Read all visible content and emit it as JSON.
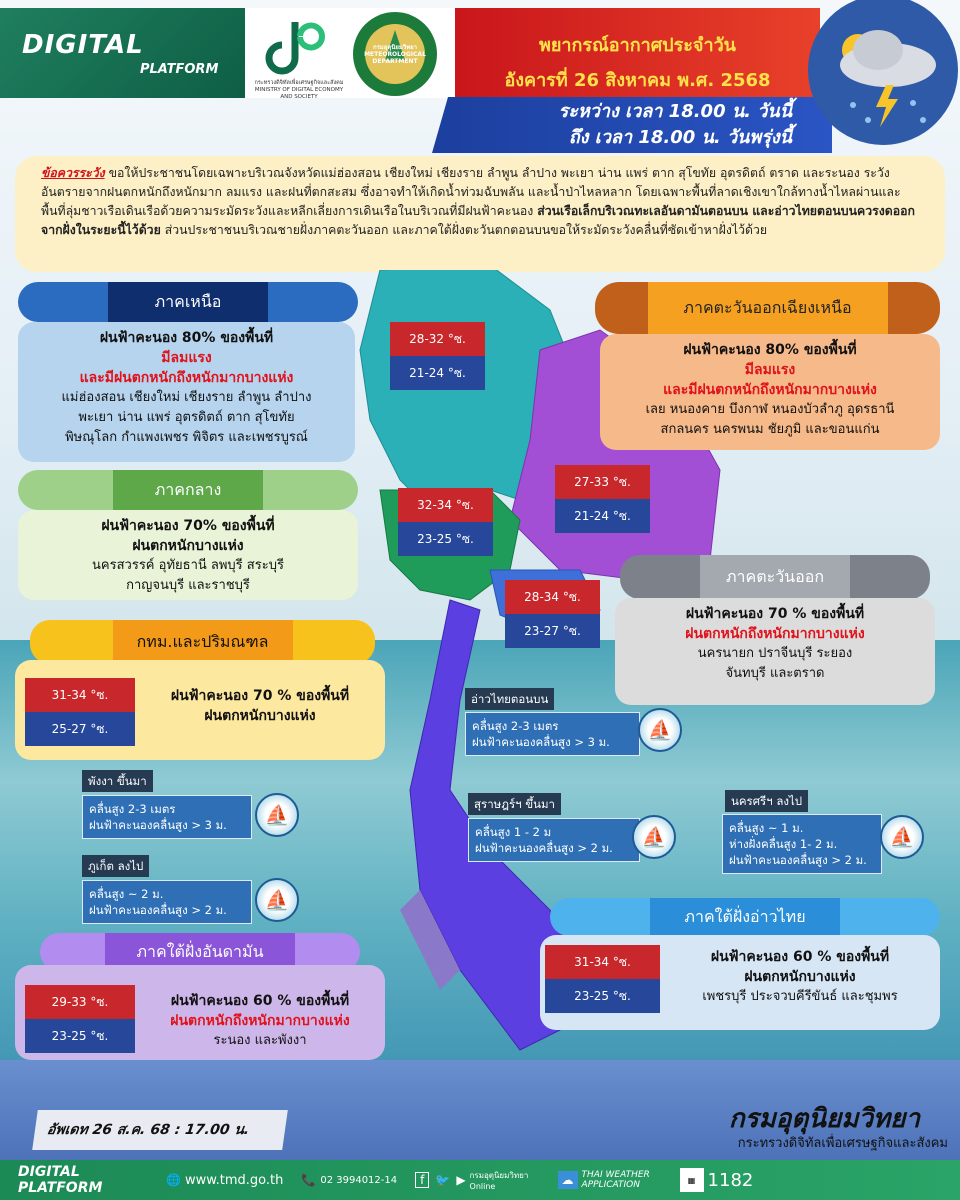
{
  "header": {
    "logo": "DIGITAL PLATFORM",
    "logo_main": "DIGITAL",
    "logo_sub": "PLATFORM",
    "ministry_logo_text": "กระทรวงดิจิทัลเพื่อเศรษฐกิจและสังคม MINISTRY OF DIGITAL ECONOMY AND SOCIETY",
    "tmd_seal_text": "กรมอุตุนิยมวิทยา METEOROLOGICAL DEPARTMENT",
    "title": "พยากรณ์อากาศประจำวัน",
    "date": "อังคารที่ 26 สิงหาคม พ.ศ. 2568",
    "period_line1": "ระหว่าง เวลา 18.00 น. วันนี้",
    "period_line2": "ถึง เวลา 18.00 น. วันพรุ่งนี้",
    "weather_icon": "sun-cloud-thunder-rain-icon"
  },
  "warning": {
    "lead": "ข้อควรระวัง",
    "text1": " ขอให้ประชาชนโดยเฉพาะบริเวณจังหวัดแม่ฮ่องสอน เชียงใหม่ เชียงราย ลำพูน ลำปาง พะเยา น่าน แพร่ ตาก สุโขทัย อุตรดิตถ์ ตราด และระนอง ระวังอันตรายจากฝนตกหนักถึงหนักมาก ลมแรง และฝนที่ตกสะสม ซึ่งอาจทำให้เกิดน้ำท่วมฉับพลัน และน้ำป่าไหลหลาก โดยเฉพาะพื้นที่ลาดเชิงเขาใกล้ทางน้ำไหลผ่านและพื้นที่ลุ่มชาวเรือเดินเรือด้วยความระมัดระวังและหลีกเลี่ยงการเดินเรือในบริเวณที่มีฝนฟ้าคะนอง ",
    "bold": "ส่วนเรือเล็กบริเวณทะเลอันดามันตอนบน และอ่าวไทยตอนบนควรงดออกจากฝั่งในระยะนี้ไว้ด้วย",
    "text2": " ส่วนประชาชนบริเวณชายฝั่งภาคตะวันออก และภาคใต้ฝั่งตะวันตกตอนบนขอให้ระมัดระวังคลื่นที่ซัดเข้าหาฝั่งไว้ด้วย"
  },
  "regions": {
    "north": {
      "name": "ภาคเหนือ",
      "rain": "ฝนฟ้าคะนอง 80% ของพื้นที่",
      "alert1": "มีลมแรง",
      "alert2": "และมีฝนตกหนักถึงหนักมากบางแห่ง",
      "areas1": "แม่ฮ่องสอน เชียงใหม่ เชียงราย ลำพูน ลำปาง",
      "areas2": "พะเยา น่าน แพร่ อุตรดิตถ์ ตาก สุโขทัย",
      "areas3": "พิษณุโลก กำแพงเพชร พิจิตร และเพชรบูรณ์",
      "temp_high": "28-32 °ซ.",
      "temp_low": "21-24 °ซ.",
      "color": "#1f5fae"
    },
    "northeast": {
      "name": "ภาคตะวันออกเฉียงเหนือ",
      "rain": "ฝนฟ้าคะนอง 80% ของพื้นที่",
      "alert1": "มีลมแรง",
      "alert2": "และมีฝนตกหนักถึงหนักมากบางแห่ง",
      "areas1": "เลย หนองคาย บึงกาฬ หนองบัวลำภู อุดรธานี",
      "areas2": "สกลนคร นครพนม ชัยภูมิ และขอนแก่น",
      "temp_high": "27-33 °ซ.",
      "temp_low": "21-24 °ซ.",
      "color": "#f5a020"
    },
    "central": {
      "name": "ภาคกลาง",
      "rain": "ฝนฟ้าคะนอง 70% ของพื้นที่",
      "alert1": "ฝนตกหนักบางแห่ง",
      "areas1": "นครสวรรค์ อุทัยธานี ลพบุรี สระบุรี",
      "areas2": "กาญจนบุรี และราชบุรี",
      "temp_high": "32-34 °ซ.",
      "temp_low": "23-25 °ซ.",
      "color": "#5fa84a"
    },
    "east": {
      "name": "ภาคตะวันออก",
      "rain": "ฝนฟ้าคะนอง 70 % ของพื้นที่",
      "alert1": "ฝนตกหนักถึงหนักมากบางแห่ง",
      "areas1": "นครนายก ปราจีนบุรี ระยอง",
      "areas2": "จันทบุรี และตราด",
      "temp_high": "28-34 °ซ.",
      "temp_low": "23-27 °ซ.",
      "color": "#8a8f96"
    },
    "bangkok": {
      "name": "กทม.และปริมณฑล",
      "rain": "ฝนฟ้าคะนอง 70 % ของพื้นที่",
      "alert1": "ฝนตกหนักบางแห่ง",
      "temp_high": "31-34 °ซ.",
      "temp_low": "25-27 °ซ.",
      "color": "#f7a71c"
    },
    "south_gulf": {
      "name": "ภาคใต้ฝั่งอ่าวไทย",
      "rain": "ฝนฟ้าคะนอง 60 % ของพื้นที่",
      "alert1": "ฝนตกหนักบางแห่ง",
      "areas1": "เพชรบุรี ประจวบคีรีขันธ์ และชุมพร",
      "temp_high": "31-34 °ซ.",
      "temp_low": "23-25 °ซ.",
      "color": "#2a8fd8"
    },
    "south_andaman": {
      "name": "ภาคใต้ฝั่งอันดามัน",
      "rain": "ฝนฟ้าคะนอง 60 % ของพื้นที่",
      "alert1": "ฝนตกหนักถึงหนักมากบางแห่ง",
      "areas1": "ระนอง และพังงา",
      "temp_high": "29-33 °ซ.",
      "temp_low": "23-25 °ซ.",
      "color": "#8a55d8"
    }
  },
  "seas": [
    {
      "area": "อ่าวไทยตอนบน",
      "line1": "คลื่นสูง 2-3 เมตร",
      "line2": "ฝนฟ้าคะนองคลื่นสูง > 3 ม."
    },
    {
      "area": "พังงา ขึ้นมา",
      "line1": "คลื่นสูง 2-3 เมตร",
      "line2": "ฝนฟ้าคะนองคลื่นสูง > 3 ม."
    },
    {
      "area": "ภูเก็ต ลงไป",
      "line1": "คลื่นสูง ~ 2 ม.",
      "line2": "ฝนฟ้าคะนองคลื่นสูง > 2 ม."
    },
    {
      "area": "สุราษฎร์ฯ ขึ้นมา",
      "line1": "คลื่นสูง 1 - 2 ม",
      "line2": "ฝนฟ้าคะนองคลื่นสูง > 2 ม."
    },
    {
      "area": "นครศรีฯ ลงไป",
      "line1": "คลื่นสูง ~ 1 ม.",
      "line2": "ห่างฝั่งคลื่นสูง 1- 2 ม.",
      "line3": "ฝนฟ้าคะนองคลื่นสูง > 2 ม."
    }
  ],
  "update": "อัพเดท 26 ส.ค. 68 : 17.00 น.",
  "agency": {
    "name": "กรมอุตุนิยมวิทยา",
    "ministry": "กระทรวงดิจิทัลเพื่อเศรษฐกิจและสังคม"
  },
  "footer": {
    "logo": "DIGITAL PLATFORM",
    "website": "www.tmd.go.th",
    "phone": "02 3994012-14",
    "social": "กรมอุตุนิยมวิทยา Online",
    "app": "THAI WEATHER APPLICATION",
    "hotline": "1182",
    "qr_caption": "www.tmd.go.th"
  },
  "colors": {
    "temp_high": "#c8282c",
    "temp_low": "#27479a",
    "alert": "#e0121b",
    "title_yellow": "#ffe14a"
  }
}
